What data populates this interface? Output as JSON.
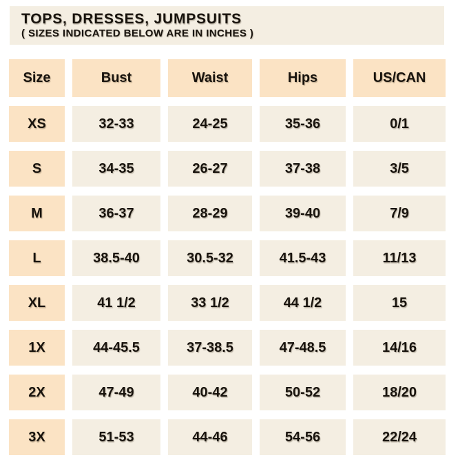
{
  "colors": {
    "page_background": "#FFFFFF",
    "panel_background": "#F4EEE2",
    "accent_cell_background": "#FBE3C4",
    "text": "#18130D"
  },
  "chart_data": {
    "type": "table",
    "title": "TOPS, DRESSES, JUMPSUITS",
    "subtitle": "( SIZES INDICATED BELOW ARE IN INCHES )",
    "columns": [
      "Size",
      "Bust",
      "Waist",
      "Hips",
      "US/CAN"
    ],
    "rows": [
      [
        "XS",
        "32-33",
        "24-25",
        "35-36",
        "0/1"
      ],
      [
        "S",
        "34-35",
        "26-27",
        "37-38",
        "3/5"
      ],
      [
        "M",
        "36-37",
        "28-29",
        "39-40",
        "7/9"
      ],
      [
        "L",
        "38.5-40",
        "30.5-32",
        "41.5-43",
        "11/13"
      ],
      [
        "XL",
        "41 1/2",
        "33 1/2",
        "44 1/2",
        "15"
      ],
      [
        "1X",
        "44-45.5",
        "37-38.5",
        "47-48.5",
        "14/16"
      ],
      [
        "2X",
        "47-49",
        "40-42",
        "50-52",
        "18/20"
      ],
      [
        "3X",
        "51-53",
        "44-46",
        "54-56",
        "22/24"
      ]
    ]
  }
}
